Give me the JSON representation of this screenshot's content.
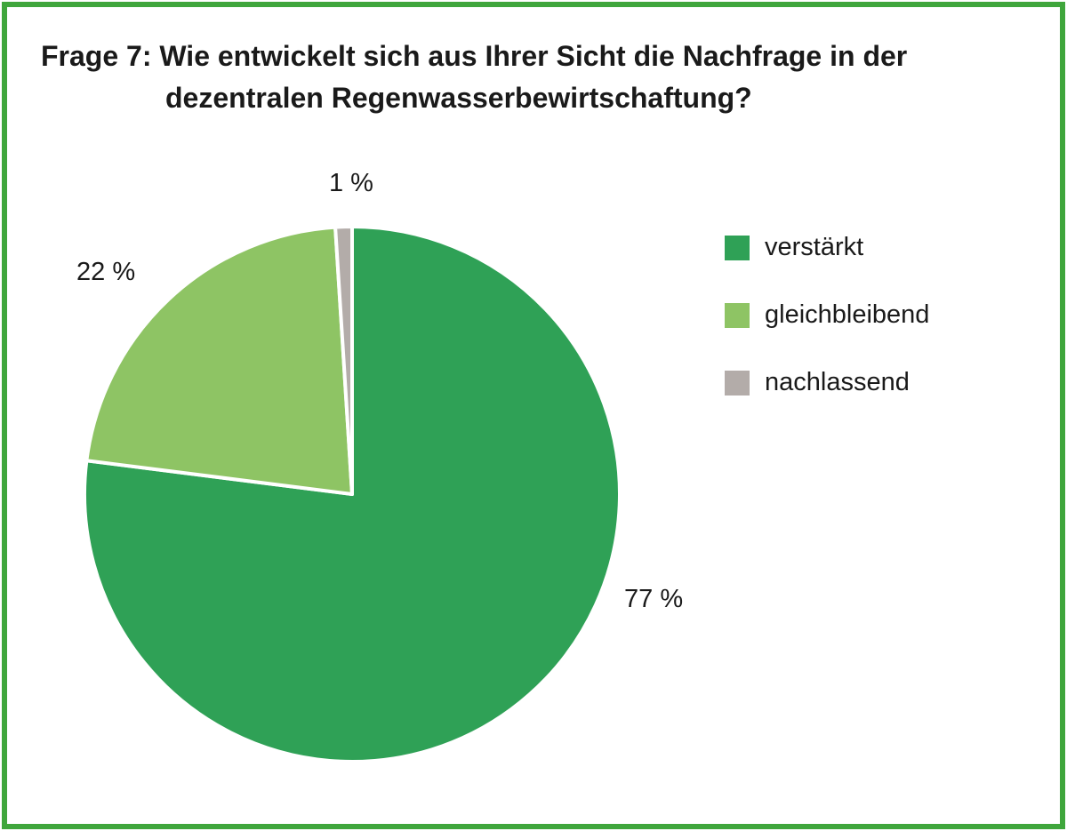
{
  "title": {
    "line1": "Frage 7: Wie entwickelt sich aus Ihrer Sicht die Nachfrage in der",
    "line2": "dezentralen Regenwasserbewirtschaftung?"
  },
  "chart_data": {
    "type": "pie",
    "labels": [
      "verstärkt",
      "gleichbleibend",
      "nachlassend"
    ],
    "values": [
      77,
      22,
      1
    ],
    "unit": "%",
    "display_labels": [
      "77 %",
      "22 %",
      "1 %"
    ],
    "colors": [
      "#2fa156",
      "#8ec464",
      "#b3aca9"
    ],
    "start_angle_deg": -90,
    "direction": "clockwise",
    "legend_position": "right",
    "slice_gap_color": "#ffffff",
    "title": "Frage 7: Wie entwickelt sich aus Ihrer Sicht die Nachfrage in der dezentralen Regenwasserbewirtschaftung?"
  },
  "frame": {
    "border_color": "#3fa63c",
    "background_color": "#ffffff"
  }
}
